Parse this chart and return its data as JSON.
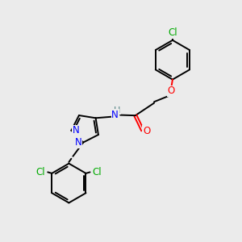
{
  "bg_color": "#ebebeb",
  "bond_color": "#000000",
  "N_color": "#0000ff",
  "O_color": "#ff0000",
  "Cl_color": "#00aa00",
  "H_color": "#4d8080",
  "line_width": 1.4,
  "font_size": 8.5,
  "figsize": [
    3.0,
    3.0
  ],
  "dpi": 100,
  "xlim": [
    0,
    10
  ],
  "ylim": [
    0,
    10
  ]
}
